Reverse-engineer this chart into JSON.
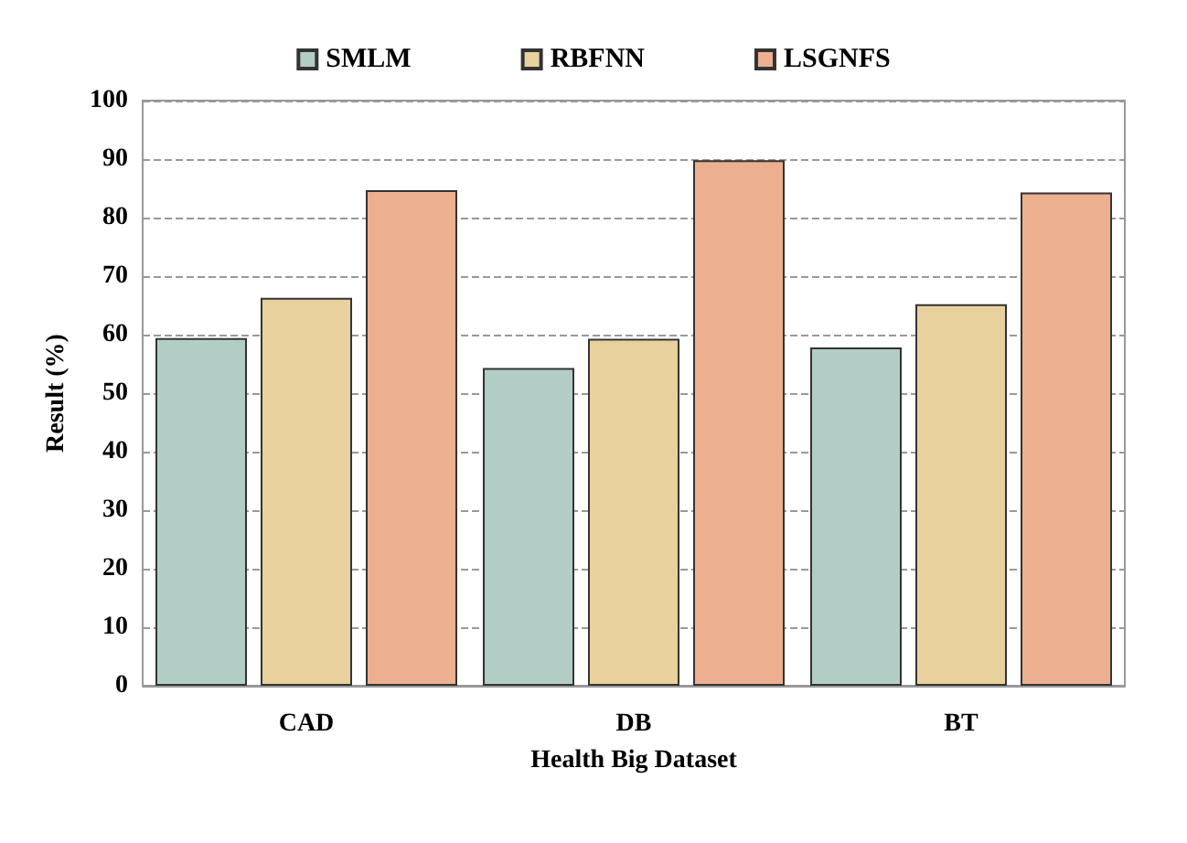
{
  "chart_data": {
    "type": "bar",
    "xlabel": "Health Big Dataset",
    "ylabel": "Result (%)",
    "categories": [
      "CAD",
      "DB",
      "BT"
    ],
    "series": [
      {
        "name": "SMLM",
        "color": "#b2cdc5",
        "values": [
          59.4,
          54.3,
          57.8
        ]
      },
      {
        "name": "RBFNN",
        "color": "#e8d19c",
        "values": [
          66.3,
          59.3,
          65.2
        ]
      },
      {
        "name": "LSGNFS",
        "color": "#ecb090",
        "values": [
          84.7,
          89.8,
          84.3
        ]
      }
    ],
    "ylim": [
      0,
      100
    ],
    "yticks": [
      0,
      10,
      20,
      30,
      40,
      50,
      60,
      70,
      80,
      90,
      100
    ],
    "grid": "y",
    "line_style": "dashed",
    "legend": "top"
  }
}
